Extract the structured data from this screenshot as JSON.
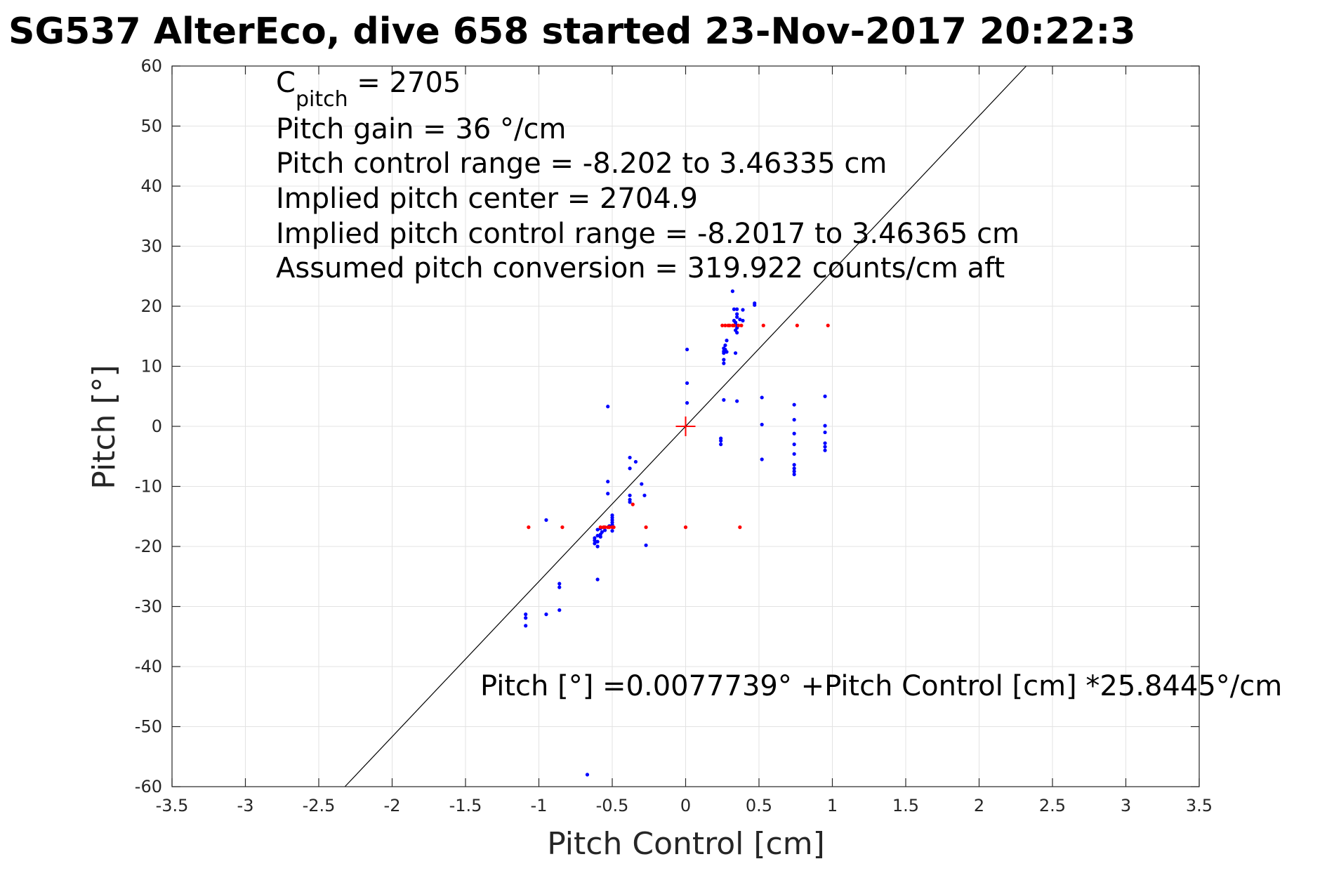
{
  "chart_data": {
    "type": "scatter",
    "title": "SG537 AlterEco, dive 658 started 23-Nov-2017 20:22:3",
    "xlabel": "Pitch Control [cm]",
    "ylabel": "Pitch [°]",
    "xlim": [
      -3.5,
      3.5
    ],
    "ylim": [
      -60,
      60
    ],
    "x_ticks": [
      -3.5,
      -3,
      -2.5,
      -2,
      -1.5,
      -1,
      -0.5,
      0,
      0.5,
      1,
      1.5,
      2,
      2.5,
      3,
      3.5
    ],
    "y_ticks": [
      -60,
      -50,
      -40,
      -30,
      -20,
      -10,
      0,
      10,
      20,
      30,
      40,
      50,
      60
    ],
    "x_tick_labels": [
      "-3.5",
      "-3",
      "-2.5",
      "-2",
      "-1.5",
      "-1",
      "-0.5",
      "0",
      "0.5",
      "1",
      "1.5",
      "2",
      "2.5",
      "3",
      "3.5"
    ],
    "y_tick_labels": [
      "-60",
      "-50",
      "-40",
      "-30",
      "-20",
      "-10",
      "0",
      "10",
      "20",
      "30",
      "40",
      "50",
      "60"
    ],
    "grid": true,
    "colors": {
      "measured": "#0000ff",
      "fitted": "#ff0000",
      "line": "#000000",
      "grid": "#e3e3e3",
      "axes": "#262626"
    },
    "annotations": {
      "c_pitch_prefix": "C",
      "c_pitch_sub": "pitch",
      "c_pitch_value": " = 2705",
      "lines": [
        "Pitch gain = 36 °/cm",
        "Pitch control range = -8.202 to 3.46335 cm",
        "Implied pitch center = 2704.9",
        "Implied pitch control range = -8.2017 to 3.46365 cm",
        "Assumed pitch conversion = 319.922 counts/cm aft"
      ],
      "equation": "Pitch [°] =0.0077739° +Pitch Control [cm] *25.8445°/cm"
    },
    "fit_line": {
      "intercept": 0.0077739,
      "slope": 25.8445
    },
    "center_marker": {
      "x": 0,
      "y": 0
    },
    "series": [
      {
        "marker": "dot",
        "color": "#0000ff",
        "points": [
          [
            0.32,
            22.5
          ],
          [
            0.47,
            20.5
          ],
          [
            0.47,
            20.2
          ],
          [
            0.33,
            19.5
          ],
          [
            0.35,
            19.5
          ],
          [
            0.39,
            19.4
          ],
          [
            0.35,
            18.7
          ],
          [
            0.35,
            18.2
          ],
          [
            0.37,
            17.8
          ],
          [
            0.39,
            17.6
          ],
          [
            0.33,
            17.6
          ],
          [
            0.34,
            17.3
          ],
          [
            0.35,
            16.8
          ],
          [
            0.35,
            16.4
          ],
          [
            0.34,
            16.0
          ],
          [
            0.35,
            15.6
          ],
          [
            0.28,
            14.3
          ],
          [
            0.27,
            13.5
          ],
          [
            0.26,
            13.0
          ],
          [
            0.27,
            12.8
          ],
          [
            0.26,
            12.5
          ],
          [
            0.28,
            12.4
          ],
          [
            0.26,
            12.2
          ],
          [
            0.34,
            12.2
          ],
          [
            0.26,
            11.1
          ],
          [
            0.26,
            10.5
          ],
          [
            0.01,
            12.8
          ],
          [
            0.01,
            7.2
          ],
          [
            0.01,
            3.9
          ],
          [
            0.26,
            4.4
          ],
          [
            0.35,
            4.2
          ],
          [
            0.52,
            4.8
          ],
          [
            0.52,
            0.3
          ],
          [
            0.24,
            -2.0
          ],
          [
            0.24,
            -2.4
          ],
          [
            0.24,
            -3.0
          ],
          [
            0.52,
            -5.5
          ],
          [
            0.74,
            3.6
          ],
          [
            0.74,
            1.1
          ],
          [
            0.74,
            -1.2
          ],
          [
            0.74,
            -3.0
          ],
          [
            0.74,
            -4.6
          ],
          [
            0.74,
            -6.4
          ],
          [
            0.74,
            -7.0
          ],
          [
            0.74,
            -7.5
          ],
          [
            0.74,
            -8.0
          ],
          [
            0.95,
            5.0
          ],
          [
            0.95,
            0.1
          ],
          [
            0.95,
            -1.0
          ],
          [
            0.95,
            -2.8
          ],
          [
            0.95,
            -3.4
          ],
          [
            0.95,
            -4.0
          ],
          [
            -0.53,
            3.3
          ],
          [
            -0.38,
            -5.2
          ],
          [
            -0.34,
            -5.9
          ],
          [
            -0.38,
            -7.0
          ],
          [
            -0.53,
            -9.2
          ],
          [
            -0.3,
            -9.6
          ],
          [
            -0.53,
            -11.2
          ],
          [
            -0.28,
            -11.5
          ],
          [
            -0.38,
            -11.5
          ],
          [
            -0.38,
            -12.2
          ],
          [
            -0.38,
            -12.6
          ],
          [
            -0.5,
            -14.8
          ],
          [
            -0.5,
            -15.2
          ],
          [
            -0.5,
            -15.6
          ],
          [
            -0.5,
            -16.0
          ],
          [
            -0.5,
            -16.4
          ],
          [
            -0.52,
            -16.6
          ],
          [
            -0.55,
            -16.8
          ],
          [
            -0.58,
            -17.0
          ],
          [
            -0.55,
            -17.3
          ],
          [
            -0.6,
            -17.2
          ],
          [
            -0.5,
            -17.4
          ],
          [
            -0.57,
            -17.6
          ],
          [
            -0.58,
            -18.0
          ],
          [
            -0.6,
            -18.2
          ],
          [
            -0.58,
            -18.4
          ],
          [
            -0.62,
            -18.6
          ],
          [
            -0.62,
            -19.0
          ],
          [
            -0.6,
            -19.2
          ],
          [
            -0.62,
            -19.5
          ],
          [
            -0.6,
            -20.0
          ],
          [
            -0.27,
            -19.8
          ],
          [
            -0.95,
            -15.6
          ],
          [
            -0.6,
            -25.5
          ],
          [
            -0.86,
            -26.2
          ],
          [
            -0.86,
            -26.8
          ],
          [
            -0.86,
            -30.6
          ],
          [
            -0.95,
            -31.3
          ],
          [
            -1.09,
            -31.3
          ],
          [
            -1.09,
            -31.9
          ],
          [
            -1.09,
            -33.2
          ],
          [
            -0.67,
            -58.0
          ]
        ]
      },
      {
        "marker": "dot",
        "color": "#ff0000",
        "points": [
          [
            0.25,
            16.8
          ],
          [
            0.27,
            16.8
          ],
          [
            0.29,
            16.8
          ],
          [
            0.3,
            16.8
          ],
          [
            0.32,
            16.8
          ],
          [
            0.33,
            16.8
          ],
          [
            0.36,
            16.8
          ],
          [
            0.38,
            16.8
          ],
          [
            0.53,
            16.8
          ],
          [
            0.76,
            16.8
          ],
          [
            0.97,
            16.8
          ],
          [
            -1.07,
            -16.8
          ],
          [
            -0.84,
            -16.8
          ],
          [
            -0.58,
            -16.8
          ],
          [
            -0.56,
            -16.8
          ],
          [
            -0.55,
            -16.8
          ],
          [
            -0.53,
            -16.8
          ],
          [
            -0.52,
            -16.8
          ],
          [
            -0.5,
            -16.8
          ],
          [
            -0.49,
            -16.8
          ],
          [
            -0.27,
            -16.8
          ],
          [
            0.0,
            -16.8
          ],
          [
            0.37,
            -16.8
          ],
          [
            -0.36,
            -13.0
          ]
        ]
      }
    ]
  }
}
